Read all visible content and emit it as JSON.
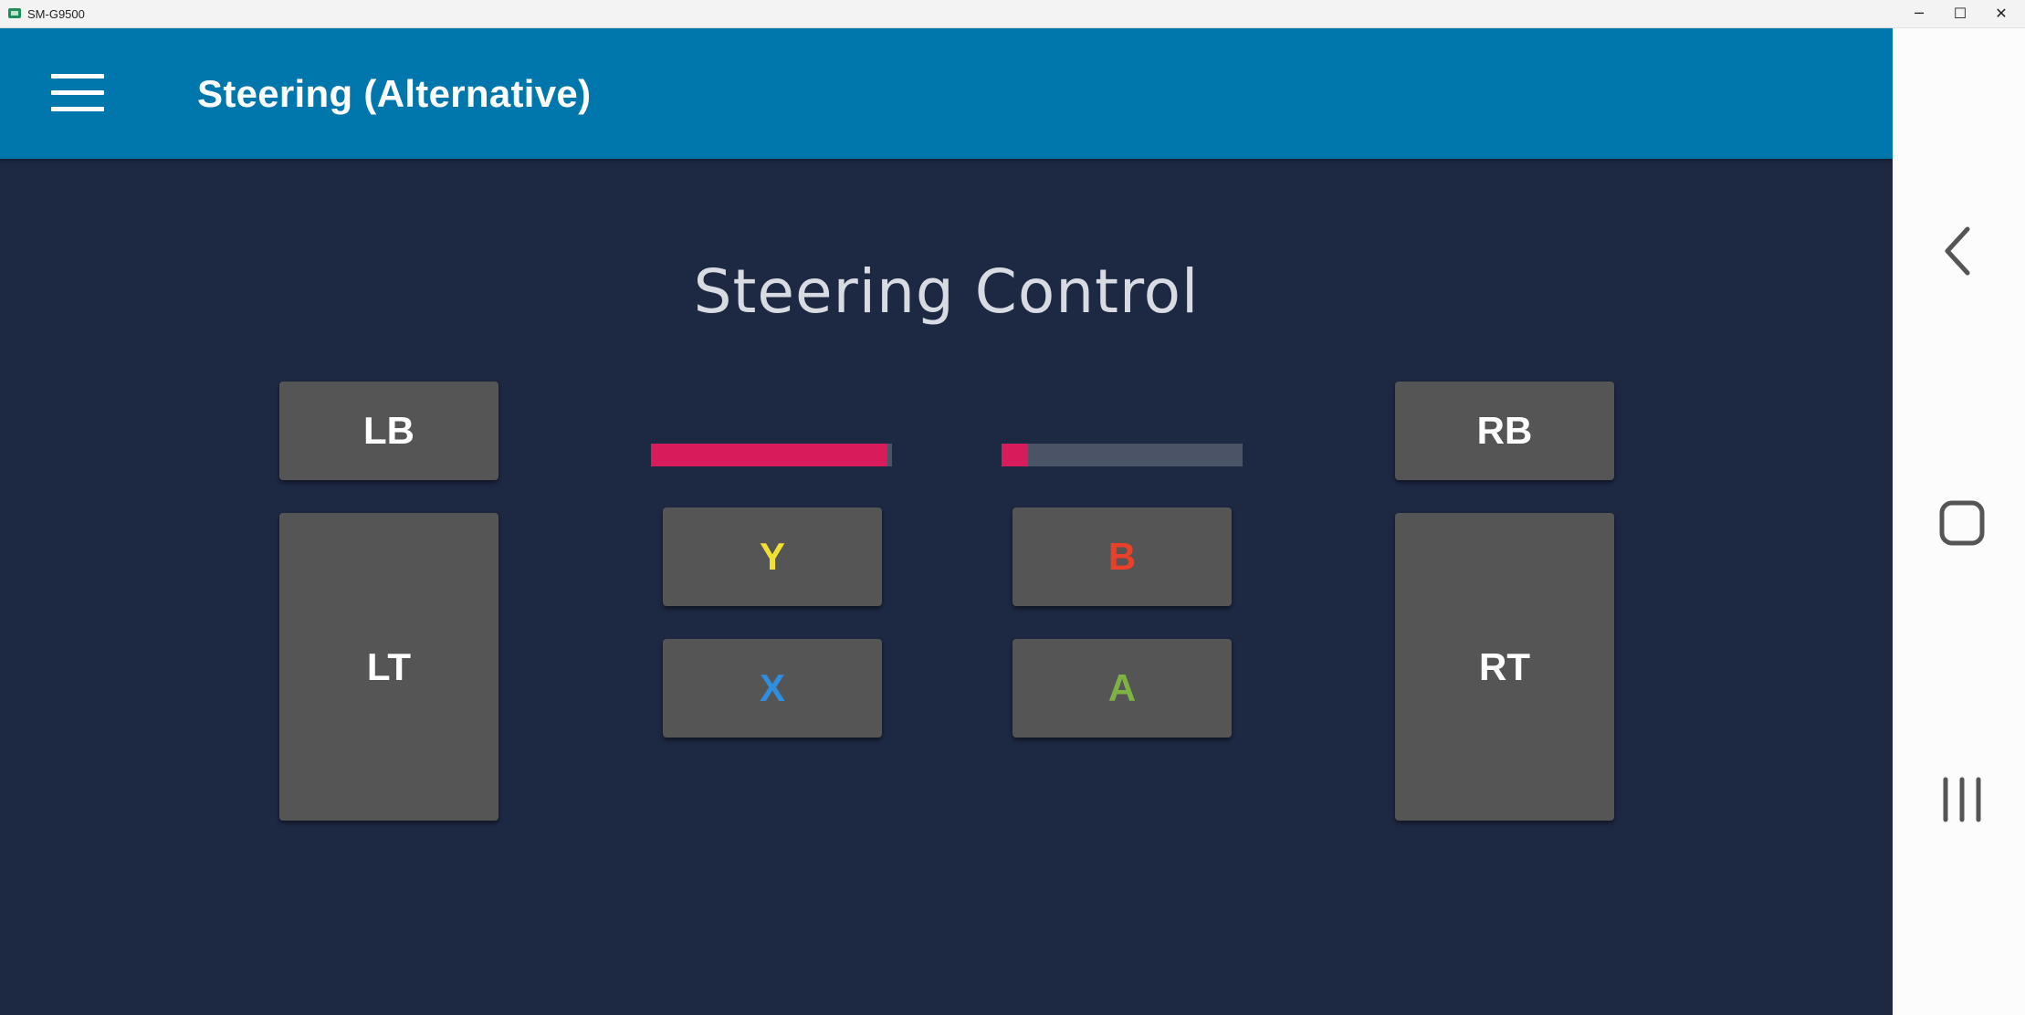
{
  "window": {
    "title": "SM-G9500",
    "minimize": "─",
    "maximize": "☐",
    "close": "✕"
  },
  "appbar": {
    "title": "Steering (Alternative)",
    "menu_icon": "hamburger-menu-icon"
  },
  "main": {
    "heading": "Steering Control",
    "buttons": {
      "lb": "LB",
      "lt": "LT",
      "rb": "RB",
      "rt": "RT",
      "y": "Y",
      "x": "X",
      "b": "B",
      "a": "A"
    },
    "button_colors": {
      "y": "#f1e033",
      "x": "#2e8fe0",
      "b": "#e8402a",
      "a": "#7cb342",
      "shoulder": "#ffffff"
    },
    "left_bar": {
      "level": 0.98,
      "color": "#d81b5b",
      "track": "#4a5466"
    },
    "right_bar": {
      "level": 0.11,
      "color": "#d81b5b",
      "track": "#4a5466"
    }
  },
  "navbar": {
    "back_icon": "back-chevron-icon",
    "home_icon": "home-square-icon",
    "recents_icon": "recents-lines-icon"
  }
}
